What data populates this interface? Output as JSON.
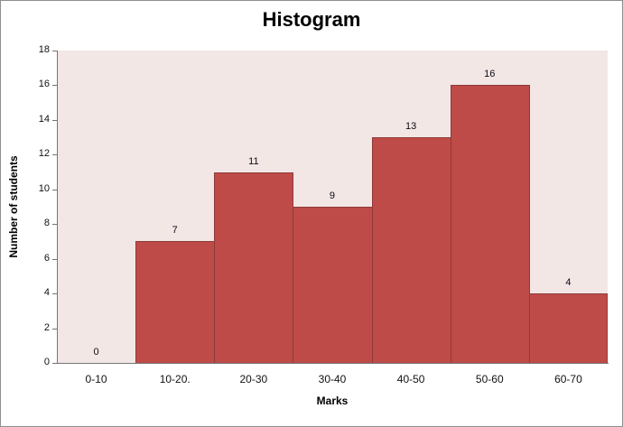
{
  "chart": {
    "title": "Histogram",
    "xlabel": "Marks",
    "ylabel": "Number of students"
  },
  "chart_data": {
    "type": "bar",
    "subtype": "histogram",
    "title": "Histogram",
    "xlabel": "Marks",
    "ylabel": "Number of students",
    "categories": [
      "0-10",
      "10-20.",
      "20-30",
      "30-40",
      "40-50",
      "50-60",
      "60-70"
    ],
    "values": [
      0,
      7,
      11,
      9,
      13,
      16,
      4
    ],
    "ylim": [
      0,
      18
    ],
    "ytick_step": 2,
    "ytick_labels": [
      "0",
      "2",
      "4",
      "6",
      "8",
      "10",
      "12",
      "14",
      "16",
      "18"
    ],
    "data_labels": [
      "0",
      "7",
      "11",
      "9",
      "13",
      "16",
      "4"
    ],
    "gap_width": 0,
    "grid": false,
    "legend": "none",
    "colors": {
      "bar_fill": "#BE4B48",
      "bar_border": "#8E3B39",
      "plot_background": "#F2E7E5",
      "axis_line": "#757575",
      "chart_border": "#8F8F8F",
      "text": "#000000"
    }
  }
}
